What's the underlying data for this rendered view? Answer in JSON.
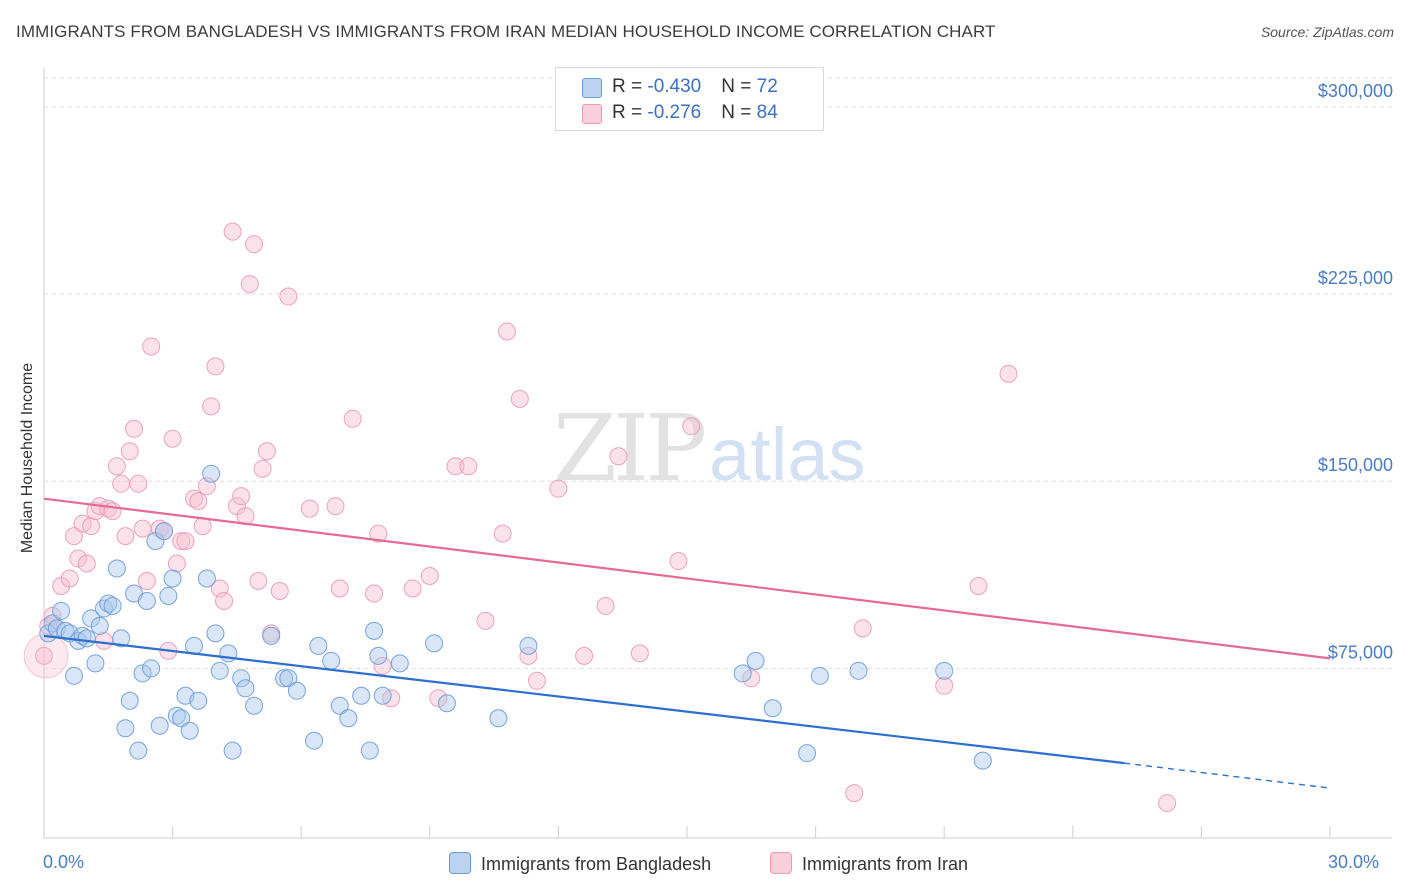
{
  "header": {
    "title": "IMMIGRANTS FROM BANGLADESH VS IMMIGRANTS FROM IRAN MEDIAN HOUSEHOLD INCOME CORRELATION CHART",
    "source": "Source: ZipAtlas.com"
  },
  "watermark": {
    "zip": "ZIP",
    "atlas": "atlas"
  },
  "legend": {
    "rows": [
      {
        "r_label": "R = ",
        "r_value": "-0.430",
        "n_label": "N = ",
        "n_value": "72"
      },
      {
        "r_label": "R = ",
        "r_value": " -0.276",
        "n_label": "N = ",
        "n_value": "84"
      }
    ]
  },
  "colors": {
    "bangladesh_fill": "#a9c8ee",
    "bangladesh_stroke": "#6b9ad8",
    "bangladesh_line": "#2c6fce",
    "iran_fill": "#f6bfd0",
    "iran_stroke": "#e99ab5",
    "iran_line": "#e36b95",
    "tick_label": "#4a7cc4",
    "grid": "#dddddd"
  },
  "chart_data": {
    "type": "scatter",
    "title": "IMMIGRANTS FROM BANGLADESH VS IMMIGRANTS FROM IRAN MEDIAN HOUSEHOLD INCOME CORRELATION CHART",
    "xlabel": "",
    "ylabel": "Median Household Income",
    "x_unit": "percent",
    "xlim": [
      0,
      30
    ],
    "ylim": [
      7000,
      318000
    ],
    "x_tick_labels": [
      "0.0%",
      "30.0%"
    ],
    "y_ticks": [
      {
        "value": 75000,
        "label": "$75,000"
      },
      {
        "value": 150000,
        "label": "$150,000"
      },
      {
        "value": 225000,
        "label": "$225,000"
      },
      {
        "value": 300000,
        "label": "$300,000"
      }
    ],
    "grid": "horizontal dashed",
    "legend_position": "top-center",
    "series": [
      {
        "name": "Immigrants from Bangladesh",
        "r": -0.43,
        "n": 72,
        "trend": {
          "x_start": 0,
          "y_start": 88000,
          "x_solid_end": 25.2,
          "y_solid_end": 37000,
          "x_end": 30,
          "y_end": 27000
        },
        "points": [
          [
            0.1,
            89000
          ],
          [
            0.2,
            93000
          ],
          [
            0.3,
            91000
          ],
          [
            0.4,
            98000
          ],
          [
            0.5,
            90000
          ],
          [
            0.6,
            89000
          ],
          [
            0.7,
            72000
          ],
          [
            0.8,
            86000
          ],
          [
            0.9,
            88000
          ],
          [
            1.0,
            87000
          ],
          [
            1.1,
            95000
          ],
          [
            1.2,
            77000
          ],
          [
            1.3,
            92000
          ],
          [
            1.4,
            99000
          ],
          [
            1.5,
            101000
          ],
          [
            1.6,
            100000
          ],
          [
            1.7,
            115000
          ],
          [
            1.8,
            87000
          ],
          [
            1.9,
            51000
          ],
          [
            2.0,
            62000
          ],
          [
            2.1,
            105000
          ],
          [
            2.2,
            42000
          ],
          [
            2.3,
            73000
          ],
          [
            2.4,
            102000
          ],
          [
            2.5,
            75000
          ],
          [
            2.6,
            126000
          ],
          [
            2.7,
            52000
          ],
          [
            2.8,
            130000
          ],
          [
            2.9,
            104000
          ],
          [
            3.0,
            111000
          ],
          [
            3.1,
            56000
          ],
          [
            3.2,
            55000
          ],
          [
            3.3,
            64000
          ],
          [
            3.4,
            50000
          ],
          [
            3.5,
            84000
          ],
          [
            3.6,
            62000
          ],
          [
            3.8,
            111000
          ],
          [
            3.9,
            153000
          ],
          [
            4.0,
            89000
          ],
          [
            4.1,
            74000
          ],
          [
            4.3,
            81000
          ],
          [
            4.4,
            42000
          ],
          [
            4.6,
            71000
          ],
          [
            4.7,
            67000
          ],
          [
            4.9,
            60000
          ],
          [
            5.3,
            88000
          ],
          [
            5.6,
            71000
          ],
          [
            5.7,
            71000
          ],
          [
            5.9,
            66000
          ],
          [
            6.3,
            46000
          ],
          [
            6.4,
            84000
          ],
          [
            6.7,
            78000
          ],
          [
            6.9,
            60000
          ],
          [
            7.1,
            55000
          ],
          [
            7.4,
            64000
          ],
          [
            7.6,
            42000
          ],
          [
            7.7,
            90000
          ],
          [
            7.8,
            80000
          ],
          [
            7.9,
            64000
          ],
          [
            8.3,
            77000
          ],
          [
            9.1,
            85000
          ],
          [
            9.4,
            61000
          ],
          [
            10.6,
            55000
          ],
          [
            11.3,
            84000
          ],
          [
            16.3,
            73000
          ],
          [
            16.6,
            78000
          ],
          [
            17.0,
            59000
          ],
          [
            17.8,
            41000
          ],
          [
            18.1,
            72000
          ],
          [
            19.0,
            74000
          ],
          [
            21.0,
            74000
          ],
          [
            21.9,
            38000
          ]
        ]
      },
      {
        "name": "Immigrants from Iran",
        "r": -0.276,
        "n": 84,
        "trend": {
          "x_start": 0,
          "y_start": 143000,
          "x_end": 30,
          "y_end": 79000
        },
        "points": [
          [
            0.0,
            80000
          ],
          [
            0.1,
            92000
          ],
          [
            0.2,
            96000
          ],
          [
            0.4,
            108000
          ],
          [
            0.6,
            111000
          ],
          [
            0.7,
            128000
          ],
          [
            0.8,
            119000
          ],
          [
            0.9,
            133000
          ],
          [
            1.0,
            117000
          ],
          [
            1.1,
            132000
          ],
          [
            1.2,
            138000
          ],
          [
            1.3,
            140000
          ],
          [
            1.4,
            86000
          ],
          [
            1.5,
            139000
          ],
          [
            1.6,
            138000
          ],
          [
            1.7,
            156000
          ],
          [
            1.8,
            149000
          ],
          [
            1.9,
            128000
          ],
          [
            2.0,
            162000
          ],
          [
            2.1,
            171000
          ],
          [
            2.2,
            149000
          ],
          [
            2.3,
            131000
          ],
          [
            2.4,
            110000
          ],
          [
            2.5,
            204000
          ],
          [
            2.7,
            131000
          ],
          [
            2.8,
            130000
          ],
          [
            2.9,
            82000
          ],
          [
            3.0,
            167000
          ],
          [
            3.1,
            117000
          ],
          [
            3.2,
            126000
          ],
          [
            3.3,
            126000
          ],
          [
            3.5,
            143000
          ],
          [
            3.6,
            142000
          ],
          [
            3.7,
            132000
          ],
          [
            3.8,
            148000
          ],
          [
            3.9,
            180000
          ],
          [
            4.0,
            196000
          ],
          [
            4.1,
            107000
          ],
          [
            4.2,
            102000
          ],
          [
            4.4,
            250000
          ],
          [
            4.5,
            140000
          ],
          [
            4.6,
            144000
          ],
          [
            4.7,
            136000
          ],
          [
            4.8,
            229000
          ],
          [
            4.9,
            245000
          ],
          [
            5.0,
            110000
          ],
          [
            5.1,
            155000
          ],
          [
            5.2,
            162000
          ],
          [
            5.3,
            89000
          ],
          [
            5.5,
            106000
          ],
          [
            5.7,
            224000
          ],
          [
            6.2,
            139000
          ],
          [
            6.8,
            140000
          ],
          [
            6.9,
            107000
          ],
          [
            7.2,
            175000
          ],
          [
            7.7,
            105000
          ],
          [
            7.8,
            129000
          ],
          [
            7.9,
            76000
          ],
          [
            8.1,
            63000
          ],
          [
            8.6,
            107000
          ],
          [
            9.0,
            112000
          ],
          [
            9.2,
            63000
          ],
          [
            9.6,
            156000
          ],
          [
            9.9,
            156000
          ],
          [
            10.3,
            94000
          ],
          [
            10.7,
            129000
          ],
          [
            10.8,
            210000
          ],
          [
            11.1,
            183000
          ],
          [
            11.3,
            80000
          ],
          [
            11.5,
            70000
          ],
          [
            12.0,
            147000
          ],
          [
            12.6,
            80000
          ],
          [
            13.1,
            100000
          ],
          [
            13.4,
            160000
          ],
          [
            13.9,
            81000
          ],
          [
            14.8,
            118000
          ],
          [
            15.1,
            172000
          ],
          [
            16.5,
            71000
          ],
          [
            18.9,
            25000
          ],
          [
            19.1,
            91000
          ],
          [
            21.0,
            68000
          ],
          [
            21.8,
            108000
          ],
          [
            22.5,
            193000
          ],
          [
            26.2,
            21000
          ]
        ]
      }
    ]
  },
  "bottom_legend": {
    "bangladesh_label": "Immigrants from Bangladesh",
    "iran_label": "Immigrants from Iran"
  }
}
